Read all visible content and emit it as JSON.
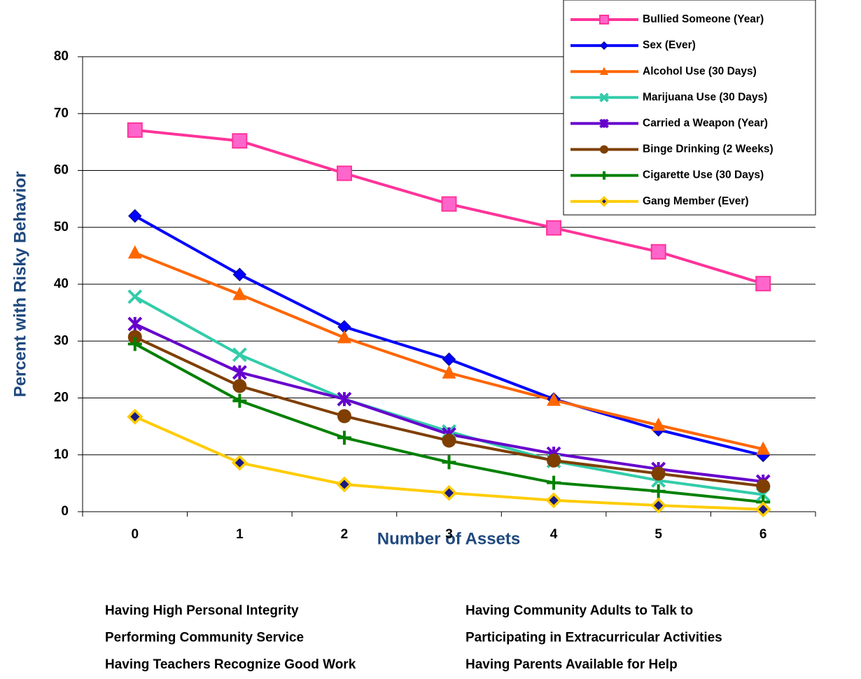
{
  "chart_data": {
    "type": "line",
    "xlabel": "Number of Assets",
    "ylabel": "Percent with Risky Behavior",
    "categories": [
      "0",
      "1",
      "2",
      "3",
      "4",
      "5",
      "6"
    ],
    "ylim": [
      0,
      80
    ],
    "yticks": [
      0,
      10,
      20,
      30,
      40,
      50,
      60,
      70,
      80
    ],
    "grid": true,
    "legend": "upper right",
    "series": [
      {
        "name": "Bullied Someone (Year)",
        "color": "#ff3399",
        "marker": "square",
        "values": [
          67.1,
          65.2,
          59.5,
          54.1,
          49.9,
          45.7,
          40.1
        ]
      },
      {
        "name": "Sex (Ever)",
        "color": "#0000ff",
        "marker": "diamond",
        "values": [
          52,
          41.7,
          32.5,
          26.8,
          19.8,
          14.4,
          9.9
        ]
      },
      {
        "name": "Alcohol Use (30 Days)",
        "color": "#ff6600",
        "marker": "triangle",
        "values": [
          45.5,
          38.2,
          30.6,
          24.4,
          19.6,
          15.2,
          11
        ]
      },
      {
        "name": "Marijuana Use (30 Days)",
        "color": "#33ccaa",
        "marker": "x",
        "values": [
          37.8,
          27.6,
          19.8,
          14.1,
          8.9,
          5.5,
          3
        ]
      },
      {
        "name": "Carried a Weapon (Year)",
        "color": "#6600cc",
        "marker": "star",
        "values": [
          33,
          24.5,
          19.8,
          13.6,
          10.2,
          7.5,
          5.3
        ]
      },
      {
        "name": "Binge Drinking (2 Weeks)",
        "color": "#7f3f00",
        "marker": "circle",
        "values": [
          30.7,
          22.1,
          16.8,
          12.5,
          9,
          6.7,
          4.5
        ]
      },
      {
        "name": "Cigarette Use (30 Days)",
        "color": "#008000",
        "marker": "plus",
        "values": [
          29.5,
          19.5,
          13,
          8.7,
          5.1,
          3.6,
          1.7
        ]
      },
      {
        "name": "Gang Member (Ever)",
        "color": "#ffcc00",
        "marker": "gem",
        "values": [
          16.7,
          8.6,
          4.8,
          3.3,
          2,
          1.1,
          0.4
        ]
      }
    ],
    "notes": {
      "left": [
        "Having High Personal Integrity",
        "Performing Community Service",
        "Having Teachers Recognize Good Work"
      ],
      "right": [
        "Having Community Adults to Talk to",
        "Participating in Extracurricular Activities",
        "Having Parents Available for Help"
      ]
    }
  }
}
